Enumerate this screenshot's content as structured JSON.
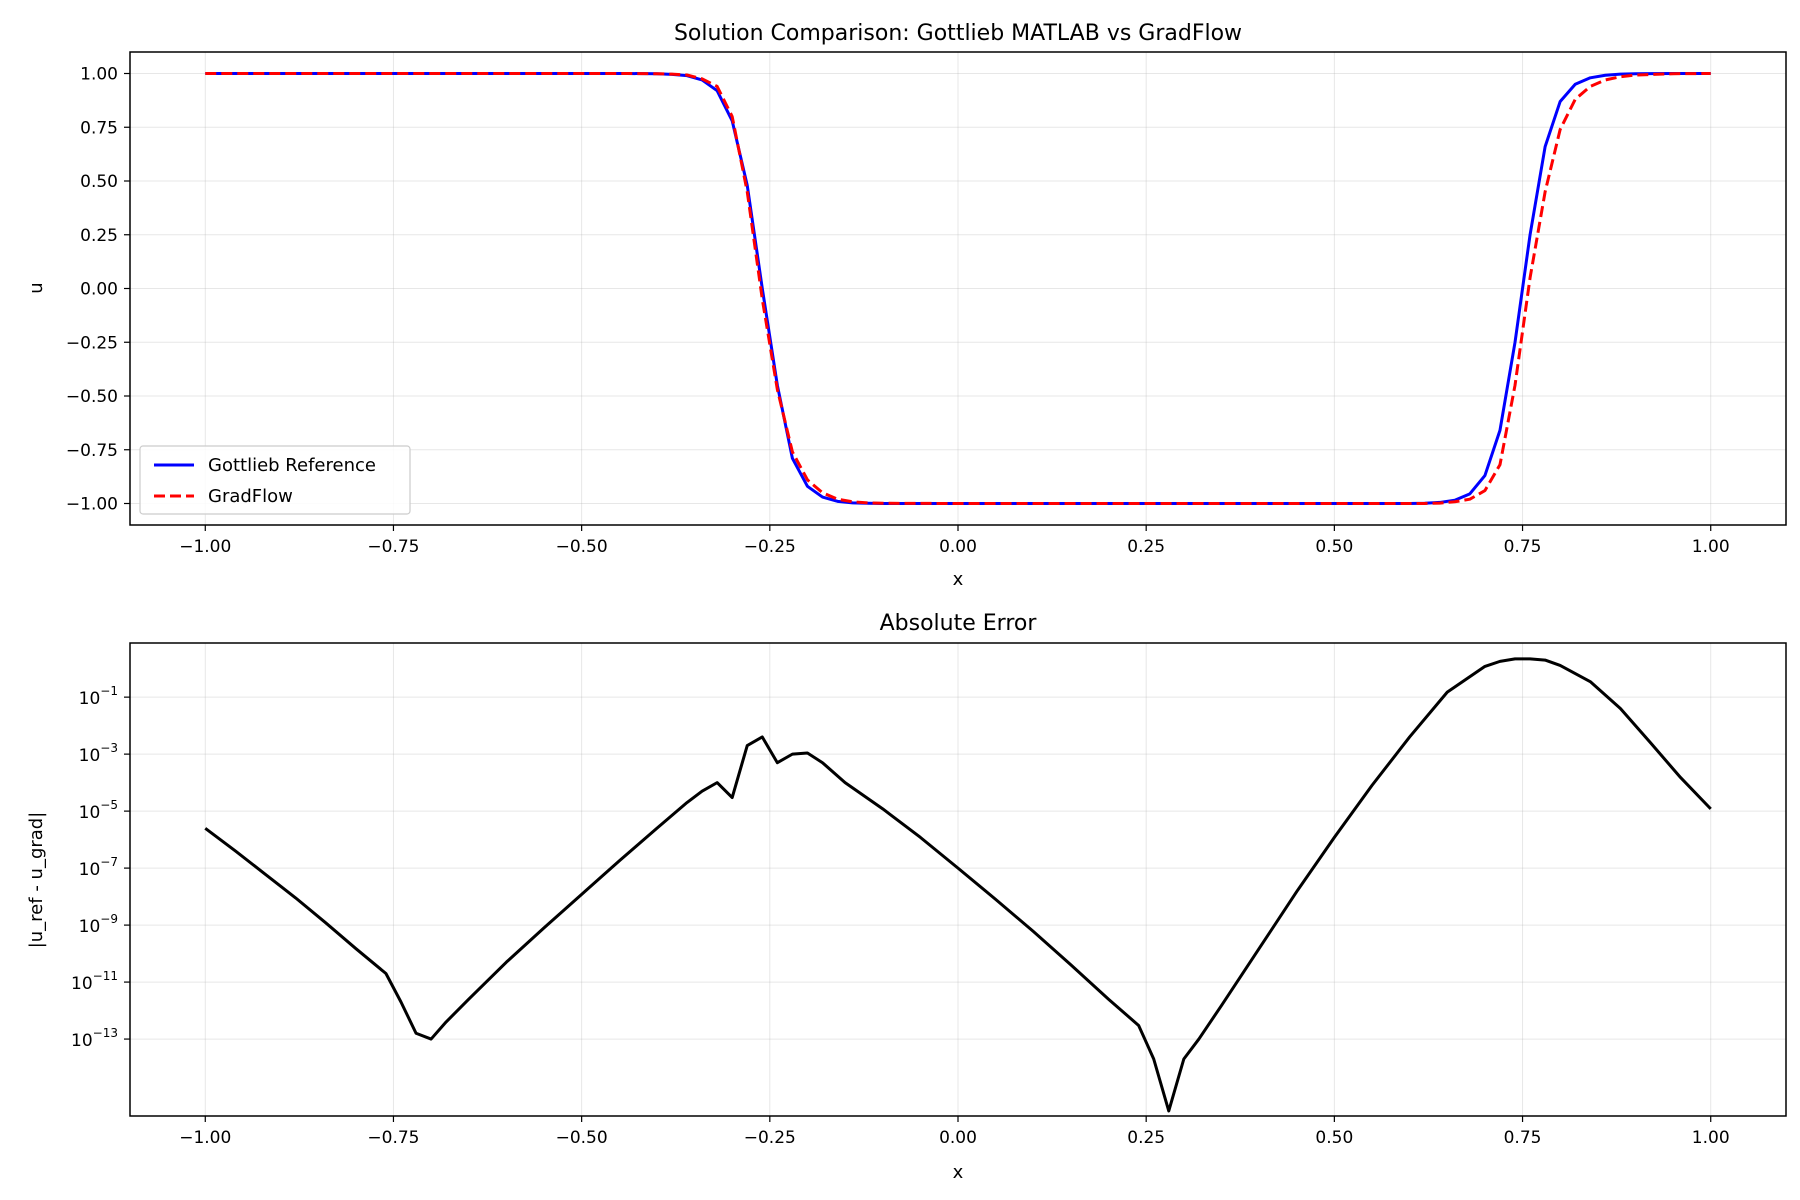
{
  "chart_data": [
    {
      "type": "line",
      "title": "Solution Comparison: Gottlieb MATLAB vs GradFlow",
      "xlabel": "x",
      "ylabel": "u",
      "xlim": [
        -1.1,
        1.1
      ],
      "ylim": [
        -1.1,
        1.1
      ],
      "xticks": [
        -1.0,
        -0.75,
        -0.5,
        -0.25,
        0.0,
        0.25,
        0.5,
        0.75,
        1.0
      ],
      "xtick_labels": [
        "−1.00",
        "−0.75",
        "−0.50",
        "−0.25",
        "0.00",
        "0.25",
        "0.50",
        "0.75",
        "1.00"
      ],
      "yticks": [
        1.0,
        0.75,
        0.5,
        0.25,
        0.0,
        -0.25,
        -0.5,
        -0.75,
        -1.0
      ],
      "ytick_labels": [
        "1.00",
        "0.75",
        "0.50",
        "0.25",
        "0.00",
        "−0.25",
        "−0.50",
        "−0.75",
        "−1.00"
      ],
      "grid": true,
      "legend_position": "lower-left",
      "series": [
        {
          "name": "Gottlieb Reference",
          "color": "#0000ff",
          "style": "solid",
          "x": [
            -1.0,
            -0.9,
            -0.8,
            -0.7,
            -0.6,
            -0.5,
            -0.44,
            -0.4,
            -0.38,
            -0.36,
            -0.34,
            -0.32,
            -0.3,
            -0.28,
            -0.26,
            -0.24,
            -0.22,
            -0.2,
            -0.18,
            -0.16,
            -0.14,
            -0.12,
            -0.1,
            0.0,
            0.1,
            0.2,
            0.3,
            0.4,
            0.5,
            0.6,
            0.62,
            0.64,
            0.66,
            0.68,
            0.7,
            0.72,
            0.74,
            0.76,
            0.78,
            0.8,
            0.82,
            0.84,
            0.86,
            0.88,
            0.9,
            0.95,
            1.0
          ],
          "y": [
            1.0,
            1.0,
            1.0,
            1.0,
            1.0,
            1.0,
            1.0,
            0.999,
            0.996,
            0.99,
            0.97,
            0.92,
            0.78,
            0.48,
            0.0,
            -0.45,
            -0.79,
            -0.92,
            -0.97,
            -0.99,
            -0.997,
            -0.999,
            -1.0,
            -1.0,
            -1.0,
            -1.0,
            -1.0,
            -1.0,
            -1.0,
            -1.0,
            -0.999,
            -0.995,
            -0.985,
            -0.955,
            -0.87,
            -0.66,
            -0.25,
            0.25,
            0.66,
            0.87,
            0.95,
            0.98,
            0.992,
            0.997,
            0.999,
            1.0,
            1.0
          ]
        },
        {
          "name": "GradFlow",
          "color": "#ff0000",
          "style": "dashed",
          "x": [
            -1.0,
            -0.9,
            -0.8,
            -0.7,
            -0.6,
            -0.5,
            -0.44,
            -0.4,
            -0.38,
            -0.36,
            -0.34,
            -0.32,
            -0.3,
            -0.28,
            -0.26,
            -0.24,
            -0.22,
            -0.2,
            -0.18,
            -0.16,
            -0.14,
            -0.12,
            -0.1,
            0.0,
            0.1,
            0.2,
            0.3,
            0.4,
            0.5,
            0.6,
            0.62,
            0.64,
            0.66,
            0.68,
            0.7,
            0.72,
            0.74,
            0.76,
            0.78,
            0.8,
            0.82,
            0.84,
            0.86,
            0.88,
            0.9,
            0.95,
            1.0
          ],
          "y": [
            1.0,
            1.0,
            1.0,
            1.0,
            1.0,
            1.0,
            1.0,
            0.999,
            0.997,
            0.993,
            0.975,
            0.94,
            0.8,
            0.45,
            -0.05,
            -0.47,
            -0.76,
            -0.89,
            -0.95,
            -0.98,
            -0.992,
            -0.997,
            -0.999,
            -1.0,
            -1.0,
            -1.0,
            -1.0,
            -1.0,
            -1.0,
            -1.0,
            -1.0,
            -0.998,
            -0.992,
            -0.98,
            -0.94,
            -0.82,
            -0.45,
            0.05,
            0.45,
            0.74,
            0.88,
            0.94,
            0.97,
            0.985,
            0.993,
            0.999,
            1.0
          ]
        }
      ]
    },
    {
      "type": "line",
      "title": "Absolute Error",
      "xlabel": "x",
      "ylabel": "|u_ref - u_grad|",
      "xlim": [
        -1.1,
        1.1
      ],
      "yscale": "log",
      "ylim_exp": [
        -15.7,
        0.9
      ],
      "xticks": [
        -1.0,
        -0.75,
        -0.5,
        -0.25,
        0.0,
        0.25,
        0.5,
        0.75,
        1.0
      ],
      "xtick_labels": [
        "−1.00",
        "−0.75",
        "−0.50",
        "−0.25",
        "0.00",
        "0.25",
        "0.50",
        "0.75",
        "1.00"
      ],
      "ytick_exponents": [
        -1,
        -3,
        -5,
        -7,
        -9,
        -11,
        -13
      ],
      "ytick_base": "10",
      "ytick_exponent_labels": [
        "−1",
        "−3",
        "−5",
        "−7",
        "−9",
        "−11",
        "−13"
      ],
      "grid": true,
      "series": [
        {
          "color": "#000000",
          "style": "solid",
          "x": [
            -1.0,
            -0.96,
            -0.92,
            -0.88,
            -0.84,
            -0.8,
            -0.76,
            -0.74,
            -0.72,
            -0.7,
            -0.68,
            -0.65,
            -0.6,
            -0.55,
            -0.5,
            -0.45,
            -0.4,
            -0.36,
            -0.34,
            -0.32,
            -0.3,
            -0.28,
            -0.26,
            -0.24,
            -0.22,
            -0.2,
            -0.18,
            -0.15,
            -0.1,
            -0.05,
            0.0,
            0.05,
            0.1,
            0.15,
            0.2,
            0.24,
            0.26,
            0.28,
            0.3,
            0.32,
            0.35,
            0.4,
            0.45,
            0.5,
            0.55,
            0.6,
            0.65,
            0.7,
            0.72,
            0.74,
            0.76,
            0.78,
            0.8,
            0.84,
            0.88,
            0.92,
            0.96,
            1.0
          ],
          "y": [
            2.5e-06,
            4e-07,
            6e-08,
            9e-09,
            1.2e-09,
            1.5e-10,
            2e-11,
            2e-12,
            1.6e-13,
            1e-13,
            4e-13,
            2.5e-12,
            5e-11,
            8e-10,
            1.2e-08,
            1.8e-07,
            2.5e-06,
            2e-05,
            5e-05,
            0.0001,
            3e-05,
            0.002,
            0.004,
            0.0005,
            0.001,
            0.0011,
            0.0005,
            0.0001,
            1.2e-05,
            1.2e-06,
            1e-07,
            8e-09,
            6e-10,
            4e-11,
            2.5e-12,
            3e-13,
            2e-14,
            3e-16,
            2e-14,
            1e-13,
            1.5e-12,
            1.5e-10,
            1.5e-08,
            1.2e-06,
            8e-05,
            0.004,
            0.15,
            1.2,
            1.8,
            2.2,
            2.2,
            2.0,
            1.3,
            0.35,
            0.04,
            0.0025,
            0.00015,
            1.2e-05
          ]
        }
      ]
    }
  ]
}
